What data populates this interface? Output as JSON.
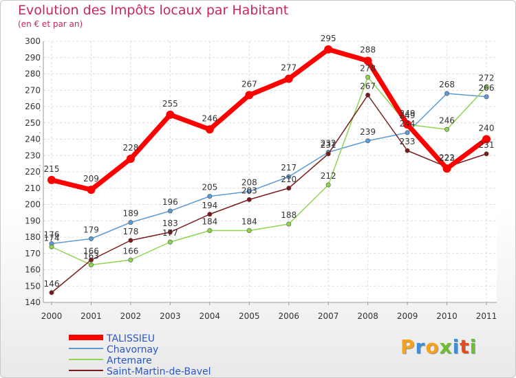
{
  "title": "Evolution des Impôts locaux par Habitant",
  "subtitle": "(en € et par an)",
  "logo": {
    "letters": [
      "P",
      "r",
      "o",
      "x",
      "i",
      "t",
      "i"
    ],
    "colors": [
      "#f6a21a",
      "#3f8fd8",
      "#f6a21a",
      "#6cbf2e",
      "#3f8fd8",
      "#e8491d",
      "#6cbf2e"
    ]
  },
  "chart_data": {
    "type": "line",
    "title": "Evolution des Impôts locaux par Habitant",
    "ylabel": "(en € et par an)",
    "xlabel": "",
    "x": [
      "2000",
      "2001",
      "2002",
      "2003",
      "2004",
      "2005",
      "2006",
      "2007",
      "2008",
      "2009",
      "2010",
      "2011"
    ],
    "ylim": [
      140,
      300
    ],
    "yticks": [
      140,
      150,
      160,
      170,
      180,
      190,
      200,
      210,
      220,
      230,
      240,
      250,
      260,
      270,
      280,
      290,
      300
    ],
    "grid": true,
    "legend": "bottom-left",
    "series": [
      {
        "name": "TALISSIEU",
        "color": "#ff0000",
        "values": [
          215,
          209,
          228,
          255,
          246,
          267,
          277,
          295,
          288,
          249,
          222,
          240
        ]
      },
      {
        "name": "Chavornay",
        "color": "#5b9bd5",
        "values": [
          176,
          179,
          189,
          196,
          205,
          208,
          217,
          232,
          239,
          244,
          268,
          266
        ]
      },
      {
        "name": "Artemare",
        "color": "#8fd44f",
        "values": [
          174,
          163,
          166,
          177,
          184,
          184,
          188,
          212,
          278,
          249,
          246,
          272
        ]
      },
      {
        "name": "Saint-Martin-de-Bavel",
        "color": "#7a1a1a",
        "values": [
          146,
          166,
          178,
          183,
          194,
          203,
          210,
          231,
          267,
          233,
          223,
          231
        ]
      }
    ]
  }
}
